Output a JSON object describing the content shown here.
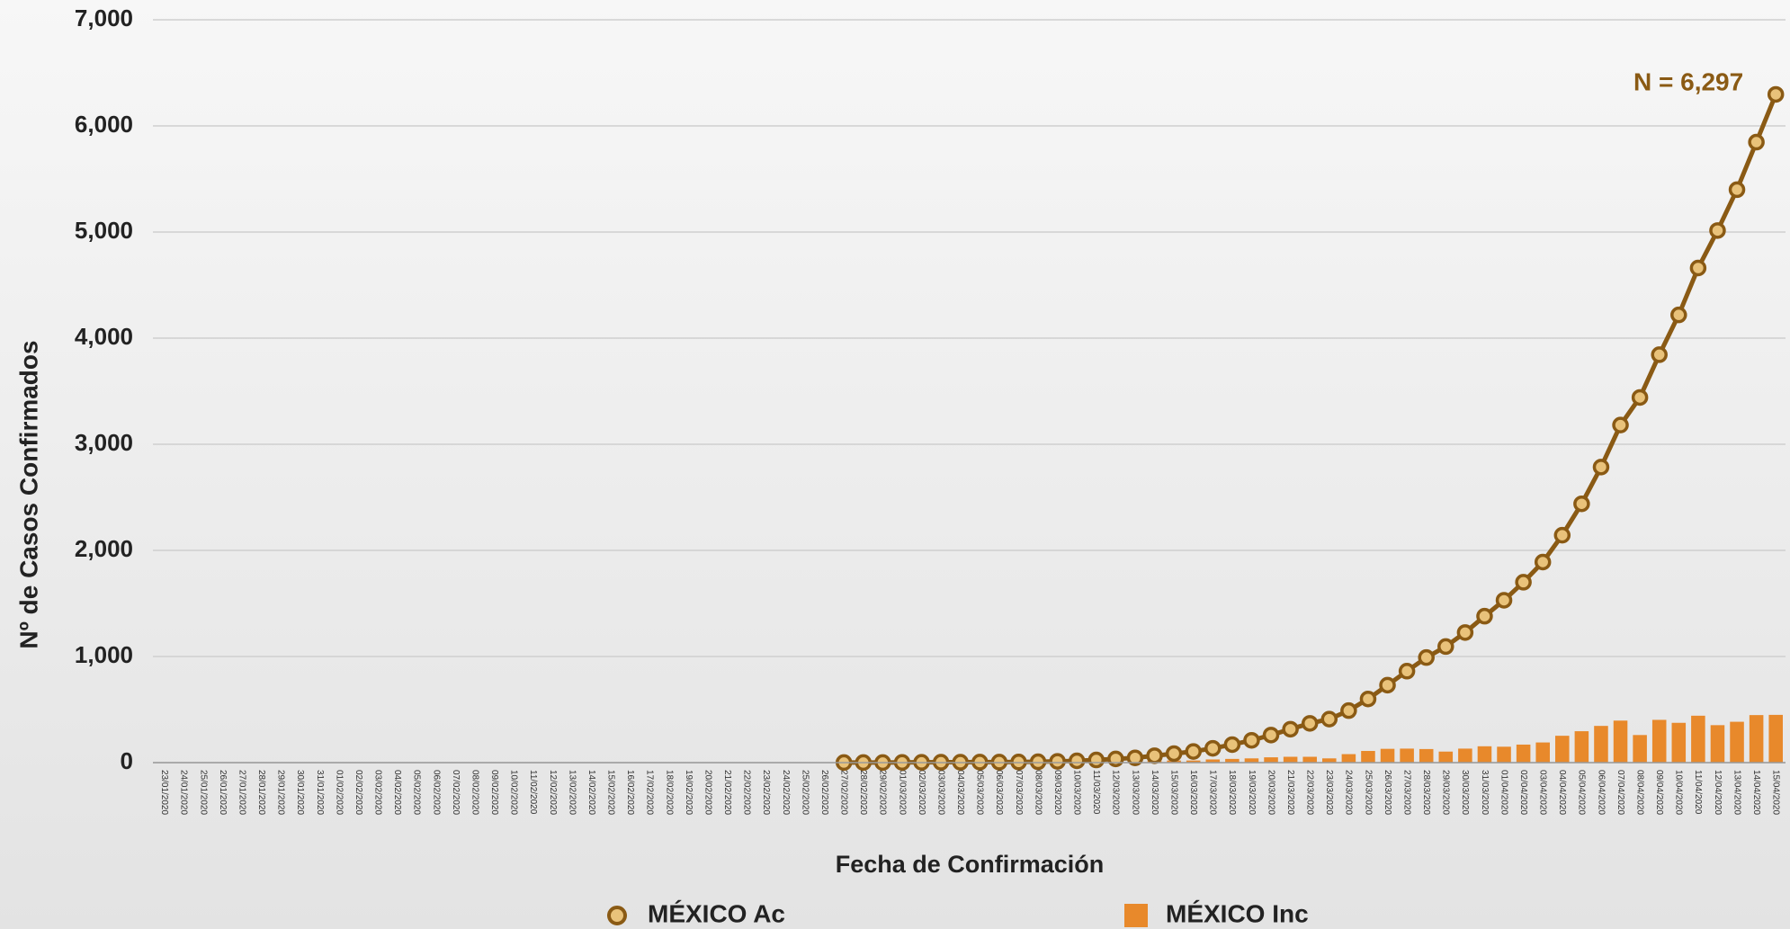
{
  "chart_data": {
    "type": "bar",
    "x_label": "Fecha de Confirmación",
    "y_label": "Nº de Casos Confirmados",
    "annotation": "N = 6,297",
    "categories": [
      "23/01/2020",
      "24/01/2020",
      "25/01/2020",
      "26/01/2020",
      "27/01/2020",
      "28/01/2020",
      "29/01/2020",
      "30/01/2020",
      "31/01/2020",
      "01/02/2020",
      "02/02/2020",
      "03/02/2020",
      "04/02/2020",
      "05/02/2020",
      "06/02/2020",
      "07/02/2020",
      "08/02/2020",
      "09/02/2020",
      "10/02/2020",
      "11/02/2020",
      "12/02/2020",
      "13/02/2020",
      "14/02/2020",
      "15/02/2020",
      "16/02/2020",
      "17/02/2020",
      "18/02/2020",
      "19/02/2020",
      "20/02/2020",
      "21/02/2020",
      "22/02/2020",
      "23/02/2020",
      "24/02/2020",
      "25/02/2020",
      "26/02/2020",
      "27/02/2020",
      "28/02/2020",
      "29/02/2020",
      "01/03/2020",
      "02/03/2020",
      "03/03/2020",
      "04/03/2020",
      "05/03/2020",
      "06/03/2020",
      "07/03/2020",
      "08/03/2020",
      "09/03/2020",
      "10/03/2020",
      "11/03/2020",
      "12/03/2020",
      "13/03/2020",
      "14/03/2020",
      "15/03/2020",
      "16/03/2020",
      "17/03/2020",
      "18/03/2020",
      "19/03/2020",
      "20/03/2020",
      "21/03/2020",
      "22/03/2020",
      "23/03/2020",
      "24/03/2020",
      "25/03/2020",
      "26/03/2020",
      "27/03/2020",
      "28/03/2020",
      "29/03/2020",
      "30/03/2020",
      "31/03/2020",
      "01/04/2020",
      "02/04/2020",
      "03/04/2020",
      "04/04/2020",
      "05/04/2020",
      "06/04/2020",
      "07/04/2020",
      "08/04/2020",
      "09/04/2020",
      "10/04/2020",
      "11/04/2020",
      "12/04/2020",
      "13/04/2020",
      "14/04/2020",
      "15/04/2020"
    ],
    "series": [
      {
        "name": "MÉXICO Inc",
        "type": "bar",
        "color": "#e8892b",
        "values": [
          null,
          null,
          null,
          null,
          null,
          null,
          null,
          null,
          null,
          null,
          null,
          null,
          null,
          null,
          null,
          null,
          null,
          null,
          null,
          null,
          null,
          null,
          null,
          null,
          null,
          null,
          null,
          null,
          null,
          null,
          null,
          null,
          null,
          null,
          null,
          1,
          0,
          0,
          1,
          1,
          1,
          0,
          1,
          0,
          1,
          2,
          4,
          5,
          8,
          10,
          10,
          20,
          20,
          20,
          30,
          35,
          40,
          50,
          55,
          55,
          40,
          80,
          110,
          130,
          132,
          128,
          104,
          132,
          154,
          150,
          170,
          190,
          253,
          296,
          346,
          396,
          260,
          403,
          375,
          442,
          353,
          385,
          448,
          450
        ]
      },
      {
        "name": "MÉXICO Ac",
        "type": "line",
        "color": "#8a5a14",
        "values": [
          null,
          null,
          null,
          null,
          null,
          null,
          null,
          null,
          null,
          null,
          null,
          null,
          null,
          null,
          null,
          null,
          null,
          null,
          null,
          null,
          null,
          null,
          null,
          null,
          null,
          null,
          null,
          null,
          null,
          null,
          null,
          null,
          null,
          null,
          null,
          1,
          1,
          1,
          2,
          3,
          4,
          4,
          5,
          5,
          6,
          8,
          12,
          17,
          25,
          35,
          45,
          65,
          85,
          105,
          135,
          170,
          210,
          260,
          315,
          370,
          410,
          490,
          600,
          730,
          862,
          990,
          1094,
          1226,
          1380,
          1530,
          1700,
          1890,
          2143,
          2439,
          2785,
          3181,
          3441,
          3844,
          4219,
          4661,
          5014,
          5399,
          5847,
          6297
        ]
      }
    ],
    "ylim": [
      0,
      7000
    ],
    "yticks": [
      0,
      {
        "value": 1000,
        "label": "1,000"
      },
      {
        "value": 2000,
        "label": "2,000"
      },
      {
        "value": 3000,
        "label": "3,000"
      },
      {
        "value": 4000,
        "label": "4,000"
      },
      {
        "value": 5000,
        "label": "5,000"
      },
      {
        "value": 6000,
        "label": "6,000"
      },
      {
        "value": 7000,
        "label": "7,000"
      }
    ],
    "grid": true
  }
}
